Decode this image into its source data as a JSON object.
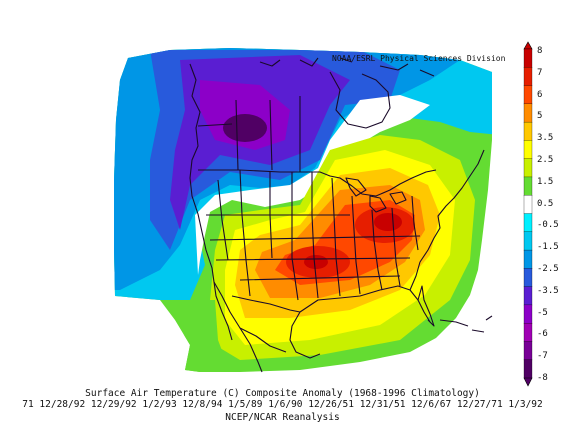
{
  "credit": "NOAA/ESRL Physical Sciences Division",
  "caption": {
    "title": "Surface Air Temperature (C) Composite Anomaly (1968-1996 Climatology)",
    "dates": "71 12/28/92 12/29/92 1/2/93 12/8/94 1/5/89 1/6/90 12/26/51 12/31/51 12/6/67 12/27/71 1/3/92",
    "source": "NCEP/NCAR Reanalysis"
  },
  "colorbar": {
    "labels": [
      "8",
      "7",
      "6",
      "5",
      "3.5",
      "2.5",
      "1.5",
      "0.5",
      "-0.5",
      "-1.5",
      "-2.5",
      "-3.5",
      "-5",
      "-6",
      "-7",
      "-8"
    ],
    "colors": [
      "#c80000",
      "#e61e00",
      "#ff4800",
      "#ff8c00",
      "#ffc800",
      "#ffff00",
      "#c8f000",
      "#64dc32",
      "#ffffff",
      "#00f0ff",
      "#00c8f0",
      "#0096e6",
      "#285adc",
      "#5a1ed2",
      "#8c00c8",
      "#a000b4",
      "#780096",
      "#500064"
    ]
  },
  "anomaly_field": {
    "units": "C",
    "centers": [
      {
        "value": -8,
        "region": "British Columbia"
      },
      {
        "value": 7,
        "region": "Ohio/Tennessee Valley"
      },
      {
        "value": 6,
        "region": "Southern Plains"
      }
    ]
  }
}
